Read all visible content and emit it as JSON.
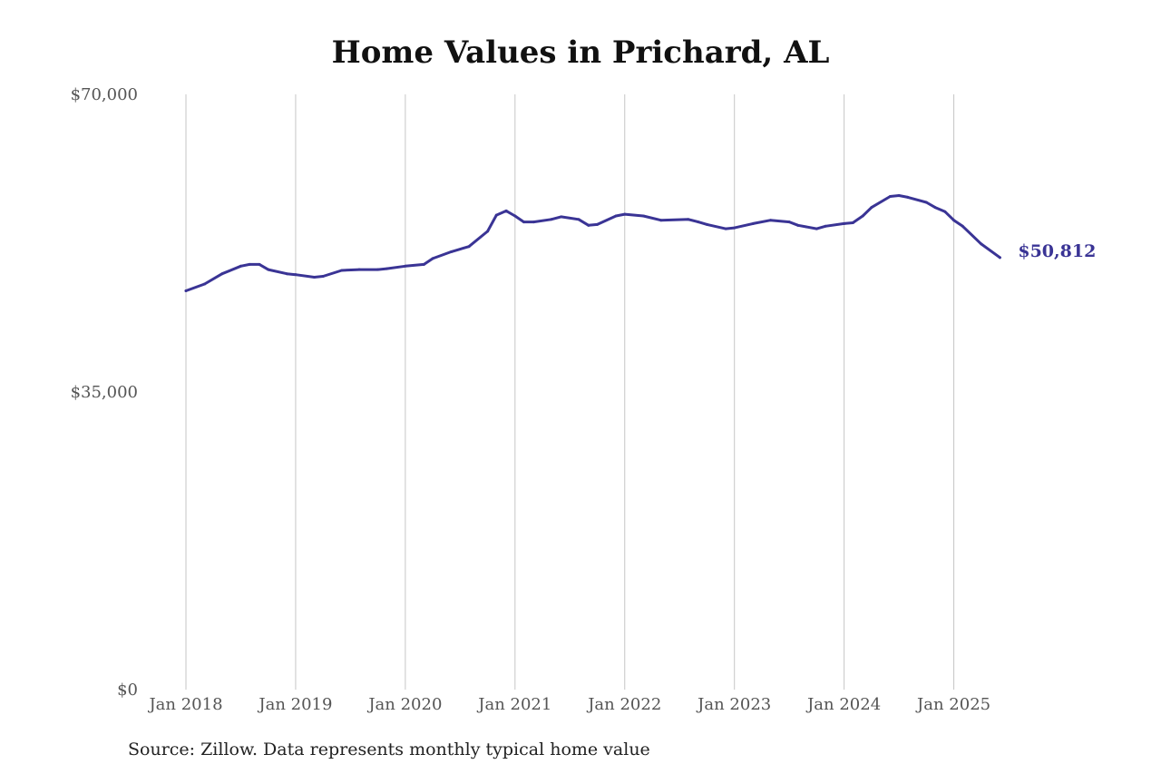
{
  "chart_data": {
    "type": "line",
    "title": "Home Values in Prichard, AL",
    "xlabel": "",
    "ylabel": "",
    "ylim": [
      0,
      70000
    ],
    "y_ticks": [
      {
        "value": 0,
        "label": "$0"
      },
      {
        "value": 35000,
        "label": "$35,000"
      },
      {
        "value": 70000,
        "label": "$70,000"
      }
    ],
    "x_ticks": [
      {
        "value": 2018,
        "label": "Jan 2018"
      },
      {
        "value": 2019,
        "label": "Jan 2019"
      },
      {
        "value": 2020,
        "label": "Jan 2020"
      },
      {
        "value": 2021,
        "label": "Jan 2021"
      },
      {
        "value": 2022,
        "label": "Jan 2022"
      },
      {
        "value": 2023,
        "label": "Jan 2023"
      },
      {
        "value": 2024,
        "label": "Jan 2024"
      },
      {
        "value": 2025,
        "label": "Jan 2025"
      }
    ],
    "xlim": [
      2018,
      2025.45
    ],
    "grid": "vertical",
    "series": [
      {
        "color": "#3a3495",
        "end_label": "$50,812",
        "points": [
          [
            2018.0,
            46900
          ],
          [
            2018.17,
            47700
          ],
          [
            2018.33,
            48900
          ],
          [
            2018.5,
            49800
          ],
          [
            2018.58,
            50000
          ],
          [
            2018.67,
            50000
          ],
          [
            2018.75,
            49400
          ],
          [
            2018.92,
            48900
          ],
          [
            2019.0,
            48800
          ],
          [
            2019.17,
            48500
          ],
          [
            2019.25,
            48600
          ],
          [
            2019.42,
            49300
          ],
          [
            2019.58,
            49400
          ],
          [
            2019.75,
            49400
          ],
          [
            2019.83,
            49500
          ],
          [
            2020.0,
            49800
          ],
          [
            2020.17,
            50000
          ],
          [
            2020.25,
            50700
          ],
          [
            2020.42,
            51500
          ],
          [
            2020.58,
            52100
          ],
          [
            2020.75,
            53900
          ],
          [
            2020.83,
            55800
          ],
          [
            2020.92,
            56300
          ],
          [
            2021.0,
            55700
          ],
          [
            2021.08,
            55000
          ],
          [
            2021.17,
            55000
          ],
          [
            2021.33,
            55300
          ],
          [
            2021.42,
            55600
          ],
          [
            2021.58,
            55300
          ],
          [
            2021.67,
            54600
          ],
          [
            2021.75,
            54700
          ],
          [
            2021.92,
            55700
          ],
          [
            2022.0,
            55900
          ],
          [
            2022.17,
            55700
          ],
          [
            2022.33,
            55200
          ],
          [
            2022.58,
            55300
          ],
          [
            2022.67,
            55000
          ],
          [
            2022.75,
            54700
          ],
          [
            2022.92,
            54200
          ],
          [
            2023.0,
            54300
          ],
          [
            2023.17,
            54800
          ],
          [
            2023.33,
            55200
          ],
          [
            2023.5,
            55000
          ],
          [
            2023.58,
            54600
          ],
          [
            2023.75,
            54200
          ],
          [
            2023.83,
            54500
          ],
          [
            2024.0,
            54800
          ],
          [
            2024.08,
            54900
          ],
          [
            2024.17,
            55700
          ],
          [
            2024.25,
            56700
          ],
          [
            2024.42,
            58000
          ],
          [
            2024.5,
            58100
          ],
          [
            2024.58,
            57900
          ],
          [
            2024.75,
            57300
          ],
          [
            2024.83,
            56700
          ],
          [
            2024.92,
            56200
          ],
          [
            2025.0,
            55200
          ],
          [
            2025.08,
            54500
          ],
          [
            2025.25,
            52400
          ],
          [
            2025.42,
            50812
          ]
        ]
      }
    ]
  },
  "source_note": "Source: Zillow. Data represents monthly typical home value"
}
